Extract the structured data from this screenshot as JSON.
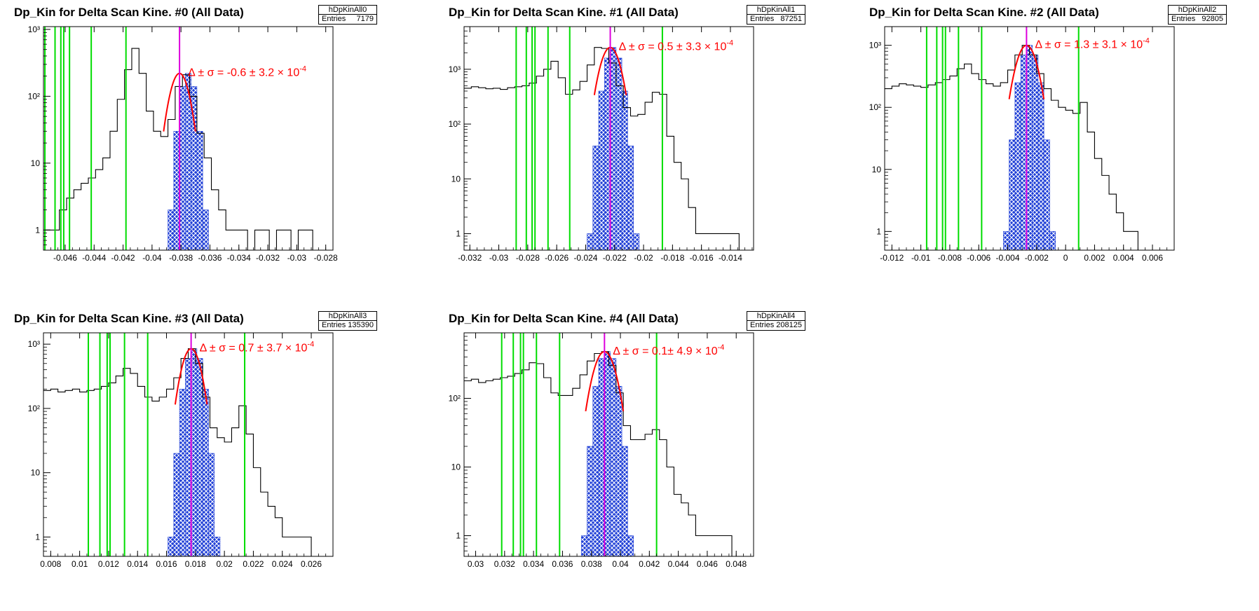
{
  "colors": {
    "hist": "#000000",
    "fill": "#1f3fd6",
    "fit": "#ff0000",
    "cut": "#00dd00",
    "center": "#dd00dd"
  },
  "chart_data": [
    {
      "type": "histogram",
      "title": "Dp_Kin for Delta Scan Kine. #0 (All Data)",
      "stats": {
        "name": "hDpKinAll0",
        "entries_label": "Entries",
        "entries": "7179"
      },
      "annotation": "Δ ± σ = -0.6 ± 3.2 × 10",
      "annotation_exp": "-4",
      "xlim": [
        -0.0475,
        -0.0275
      ],
      "ylim": [
        0.5,
        1100
      ],
      "yscale": "log",
      "x_ticks": [
        -0.046,
        -0.044,
        -0.042,
        -0.04,
        -0.038,
        -0.036,
        -0.034,
        -0.032,
        -0.03,
        -0.028
      ],
      "x_tick_labels": [
        "-0.046",
        "-0.044",
        "-0.042",
        "-0.04",
        "-0.038",
        "-0.036",
        "-0.034",
        "-0.032",
        "-0.03",
        "-0.028"
      ],
      "y_ticks": [
        1,
        10,
        100,
        1000
      ],
      "y_tick_labels": [
        "1",
        "10",
        "10²",
        "10³"
      ],
      "cut_lines": [
        -0.0474,
        -0.0467,
        -0.0463,
        -0.0461,
        -0.0457,
        -0.0442,
        -0.0418
      ],
      "center": -0.0381,
      "hist": {
        "x": [
          -0.0474,
          -0.0469,
          -0.0464,
          -0.0459,
          -0.0454,
          -0.0449,
          -0.0444,
          -0.0439,
          -0.0434,
          -0.0429,
          -0.0424,
          -0.0419,
          -0.0414,
          -0.0409,
          -0.0404,
          -0.0399,
          -0.0394,
          -0.0389,
          -0.0384,
          -0.0379,
          -0.0374,
          -0.0369,
          -0.0364,
          -0.0359,
          -0.0354,
          -0.0349,
          -0.0344,
          -0.0339,
          -0.0334,
          -0.0329,
          -0.0324,
          -0.0319,
          -0.0314,
          -0.0309,
          -0.0304,
          -0.0299,
          -0.0294,
          -0.0289,
          -0.0284
        ],
        "y": [
          1,
          1,
          2,
          3,
          4,
          5,
          6,
          8,
          12,
          30,
          90,
          250,
          520,
          220,
          60,
          30,
          25,
          45,
          140,
          210,
          100,
          28,
          12,
          4,
          2,
          1,
          1,
          1,
          0,
          1,
          1,
          0,
          1,
          1,
          0,
          1,
          1,
          0,
          0
        ]
      },
      "fill": {
        "x": [
          -0.0389,
          -0.0385,
          -0.0381,
          -0.0377,
          -0.0373,
          -0.0369,
          -0.0365
        ],
        "y": [
          2,
          30,
          140,
          220,
          140,
          30,
          2
        ]
      },
      "fit": {
        "mu": -0.0381,
        "sigma": 0.00055,
        "amp": 220
      }
    },
    {
      "type": "histogram",
      "title": "Dp_Kin for Delta Scan Kine. #1 (All Data)",
      "stats": {
        "name": "hDpKinAll1",
        "entries_label": "Entries",
        "entries": "87251"
      },
      "annotation": "Δ ± σ = 0.5 ± 3.3 × 10",
      "annotation_exp": "-4",
      "xlim": [
        -0.0324,
        -0.0124
      ],
      "ylim": [
        0.5,
        6000
      ],
      "yscale": "log",
      "x_ticks": [
        -0.032,
        -0.03,
        -0.028,
        -0.026,
        -0.024,
        -0.022,
        -0.02,
        -0.018,
        -0.016,
        -0.014
      ],
      "x_tick_labels": [
        "-0.032",
        "-0.03",
        "-0.028",
        "-0.026",
        "-0.024",
        "-0.022",
        "-0.02",
        "-0.018",
        "-0.016",
        "-0.014"
      ],
      "y_ticks": [
        1,
        10,
        100,
        1000
      ],
      "y_tick_labels": [
        "1",
        "10",
        "10²",
        "10³"
      ],
      "cut_lines": [
        -0.0288,
        -0.0281,
        -0.0277,
        -0.0275,
        -0.0266,
        -0.0251,
        -0.0187
      ],
      "center": -0.0223,
      "hist": {
        "x": [
          -0.0324,
          -0.0319,
          -0.0314,
          -0.0309,
          -0.0304,
          -0.0299,
          -0.0294,
          -0.0289,
          -0.0284,
          -0.0279,
          -0.0274,
          -0.0269,
          -0.0264,
          -0.0259,
          -0.0254,
          -0.0249,
          -0.0244,
          -0.0239,
          -0.0234,
          -0.0229,
          -0.0224,
          -0.0219,
          -0.0214,
          -0.0209,
          -0.0204,
          -0.0199,
          -0.0194,
          -0.0189,
          -0.0184,
          -0.0179,
          -0.0174,
          -0.0169,
          -0.0164,
          -0.0159,
          -0.0154,
          -0.0149,
          -0.0144,
          -0.0139,
          -0.0134
        ],
        "y": [
          450,
          480,
          460,
          440,
          450,
          430,
          460,
          480,
          500,
          560,
          750,
          1000,
          1400,
          700,
          350,
          420,
          600,
          1200,
          2500,
          2400,
          1300,
          500,
          200,
          140,
          150,
          250,
          380,
          350,
          60,
          20,
          10,
          3,
          1,
          1,
          1,
          1,
          1,
          1,
          0
        ]
      },
      "fill": {
        "x": [
          -0.0239,
          -0.0235,
          -0.0231,
          -0.0227,
          -0.0223,
          -0.0219,
          -0.0215,
          -0.0211,
          -0.0207
        ],
        "y": [
          1,
          40,
          400,
          1600,
          2500,
          1600,
          400,
          40,
          1
        ]
      },
      "fit": {
        "mu": -0.0223,
        "sigma": 0.00055,
        "amp": 2500
      }
    },
    {
      "type": "histogram",
      "title": "Dp_Kin for Delta Scan Kine. #2 (All Data)",
      "stats": {
        "name": "hDpKinAll2",
        "entries_label": "Entries",
        "entries": "92805"
      },
      "annotation": "Δ ± σ = 1.3 ± 3.1 × 10",
      "annotation_exp": "-4",
      "xlim": [
        -0.0125,
        0.0075
      ],
      "ylim": [
        0.5,
        2000
      ],
      "yscale": "log",
      "x_ticks": [
        -0.012,
        -0.01,
        -0.008,
        -0.006,
        -0.004,
        -0.002,
        0,
        0.002,
        0.004,
        0.006
      ],
      "x_tick_labels": [
        "-0.012",
        "-0.01",
        "-0.008",
        "-0.006",
        "-0.004",
        "-0.002",
        "0",
        "0.002",
        "0.004",
        "0.006"
      ],
      "y_ticks": [
        1,
        10,
        100,
        1000
      ],
      "y_tick_labels": [
        "1",
        "10",
        "10²",
        "10³"
      ],
      "cut_lines": [
        -0.0096,
        -0.0089,
        -0.0085,
        -0.0083,
        -0.0074,
        -0.0058,
        0.0009
      ],
      "center": -0.0027,
      "hist": {
        "x": [
          -0.0125,
          -0.012,
          -0.0115,
          -0.011,
          -0.0105,
          -0.01,
          -0.0095,
          -0.009,
          -0.0085,
          -0.008,
          -0.0075,
          -0.007,
          -0.0065,
          -0.006,
          -0.0055,
          -0.005,
          -0.0045,
          -0.004,
          -0.0035,
          -0.003,
          -0.0025,
          -0.002,
          -0.0015,
          -0.001,
          -0.0005,
          0,
          0.0005,
          0.001,
          0.0015,
          0.002,
          0.0025,
          0.003,
          0.0035,
          0.004,
          0.0045,
          0.005,
          0.0055,
          0.006,
          0.0065
        ],
        "y": [
          200,
          220,
          240,
          230,
          220,
          210,
          230,
          250,
          280,
          320,
          420,
          500,
          350,
          280,
          240,
          220,
          250,
          400,
          700,
          1000,
          700,
          350,
          200,
          130,
          100,
          90,
          80,
          120,
          40,
          15,
          8,
          4,
          2,
          1,
          1,
          0,
          0,
          0,
          0
        ]
      },
      "fill": {
        "x": [
          -0.0043,
          -0.0039,
          -0.0035,
          -0.0031,
          -0.0027,
          -0.0023,
          -0.0019,
          -0.0015,
          -0.0011
        ],
        "y": [
          1,
          30,
          250,
          700,
          1000,
          700,
          250,
          30,
          1
        ]
      },
      "fit": {
        "mu": -0.0027,
        "sigma": 0.0006,
        "amp": 1000
      }
    },
    {
      "type": "histogram",
      "title": "Dp_Kin for Delta Scan Kine. #3 (All Data)",
      "stats": {
        "name": "hDpKinAll3",
        "entries_label": "Entries",
        "entries": "135390"
      },
      "annotation": "Δ ± σ = 0.7 ± 3.7 × 10",
      "annotation_exp": "-4",
      "xlim": [
        0.0075,
        0.0275
      ],
      "ylim": [
        0.5,
        1500
      ],
      "yscale": "log",
      "x_ticks": [
        0.008,
        0.01,
        0.012,
        0.014,
        0.016,
        0.018,
        0.02,
        0.022,
        0.024,
        0.026
      ],
      "x_tick_labels": [
        "0.008",
        "0.01",
        "0.012",
        "0.014",
        "0.016",
        "0.018",
        "0.02",
        "0.022",
        "0.024",
        "0.026"
      ],
      "y_ticks": [
        1,
        10,
        100,
        1000
      ],
      "y_tick_labels": [
        "1",
        "10",
        "10²",
        "10³"
      ],
      "cut_lines": [
        0.0106,
        0.0114,
        0.0119,
        0.0121,
        0.0131,
        0.0147,
        0.0214
      ],
      "center": 0.0177,
      "hist": {
        "x": [
          0.0075,
          0.008,
          0.0085,
          0.009,
          0.0095,
          0.01,
          0.0105,
          0.011,
          0.0115,
          0.012,
          0.0125,
          0.013,
          0.0135,
          0.014,
          0.0145,
          0.015,
          0.0155,
          0.016,
          0.0165,
          0.017,
          0.0175,
          0.018,
          0.0185,
          0.019,
          0.0195,
          0.02,
          0.0205,
          0.021,
          0.0215,
          0.022,
          0.0225,
          0.023,
          0.0235,
          0.024,
          0.0245,
          0.025,
          0.0255,
          0.026,
          0.0265
        ],
        "y": [
          190,
          200,
          180,
          190,
          200,
          180,
          190,
          200,
          220,
          250,
          320,
          420,
          350,
          220,
          150,
          130,
          150,
          200,
          300,
          600,
          850,
          500,
          150,
          50,
          35,
          30,
          50,
          110,
          40,
          12,
          5,
          3,
          2,
          1,
          1,
          1,
          1,
          0,
          0
        ]
      },
      "fill": {
        "x": [
          0.0161,
          0.0165,
          0.0169,
          0.0173,
          0.0177,
          0.0181,
          0.0185,
          0.0189,
          0.0193
        ],
        "y": [
          1,
          20,
          200,
          600,
          850,
          600,
          200,
          20,
          1
        ]
      },
      "fit": {
        "mu": 0.0177,
        "sigma": 0.00055,
        "amp": 850
      }
    },
    {
      "type": "histogram",
      "title": "Dp_Kin for Delta Scan Kine. #4 (All Data)",
      "stats": {
        "name": "hDpKinAll4",
        "entries_label": "Entries",
        "entries": "208125"
      },
      "annotation": "Δ ± σ = 0.1± 4.9 × 10",
      "annotation_exp": "-4",
      "xlim": [
        0.0292,
        0.0492
      ],
      "ylim": [
        0.5,
        900
      ],
      "yscale": "log",
      "x_ticks": [
        0.03,
        0.032,
        0.034,
        0.036,
        0.038,
        0.04,
        0.042,
        0.044,
        0.046,
        0.048
      ],
      "x_tick_labels": [
        "0.03",
        "0.032",
        "0.034",
        "0.036",
        "0.038",
        "0.04",
        "0.042",
        "0.044",
        "0.046",
        "0.048"
      ],
      "y_ticks": [
        1,
        10,
        100
      ],
      "y_tick_labels": [
        "1",
        "10",
        "10²"
      ],
      "cut_lines": [
        0.0318,
        0.0326,
        0.0331,
        0.0333,
        0.0342,
        0.0358,
        0.0425
      ],
      "center": 0.0389,
      "hist": {
        "x": [
          0.0292,
          0.0297,
          0.0302,
          0.0307,
          0.0312,
          0.0317,
          0.0322,
          0.0327,
          0.0332,
          0.0337,
          0.0342,
          0.0347,
          0.0352,
          0.0357,
          0.0362,
          0.0367,
          0.0372,
          0.0377,
          0.0382,
          0.0387,
          0.0392,
          0.0397,
          0.0402,
          0.0407,
          0.0412,
          0.0417,
          0.0422,
          0.0427,
          0.0432,
          0.0437,
          0.0442,
          0.0447,
          0.0452,
          0.0457,
          0.0462,
          0.0467,
          0.0472,
          0.0477,
          0.0482
        ],
        "y": [
          180,
          190,
          170,
          180,
          190,
          200,
          210,
          230,
          260,
          330,
          320,
          200,
          120,
          110,
          110,
          140,
          220,
          350,
          450,
          480,
          300,
          120,
          40,
          25,
          25,
          30,
          35,
          25,
          10,
          4,
          3,
          2,
          1,
          1,
          1,
          1,
          1,
          0,
          0
        ]
      },
      "fill": {
        "x": [
          0.0373,
          0.0377,
          0.0381,
          0.0385,
          0.0389,
          0.0393,
          0.0397,
          0.0401,
          0.0405
        ],
        "y": [
          1,
          20,
          150,
          380,
          480,
          380,
          150,
          20,
          1
        ]
      },
      "fit": {
        "mu": 0.0389,
        "sigma": 0.00065,
        "amp": 480
      }
    }
  ]
}
